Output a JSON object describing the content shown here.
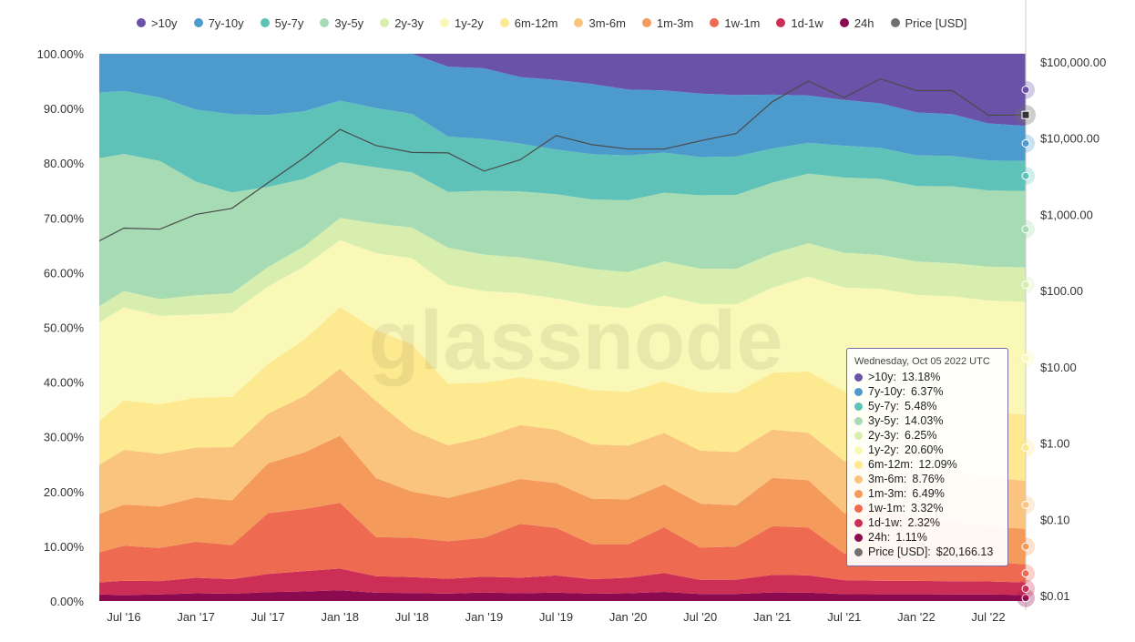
{
  "chart_data": {
    "type": "area",
    "stacked": true,
    "percent_stacked": true,
    "x_ticks": [
      "Jul '16",
      "Jan '17",
      "Jul '17",
      "Jan '18",
      "Jul '18",
      "Jan '19",
      "Jul '19",
      "Jan '20",
      "Jul '20",
      "Jan '21",
      "Jul '21",
      "Jan '22",
      "Jul '22"
    ],
    "y_left_ticks": [
      "0.00%",
      "10.00%",
      "20.00%",
      "30.00%",
      "40.00%",
      "50.00%",
      "60.00%",
      "70.00%",
      "80.00%",
      "90.00%",
      "100.00%"
    ],
    "y_left_range": [
      0,
      100
    ],
    "y_right_scale": "log",
    "y_right_ticks": [
      "$0.01",
      "$0.10",
      "$1.00",
      "$10.00",
      "$100.00",
      "$1,000.00",
      "$10,000.00",
      "$100,000.00"
    ],
    "y_right_range": [
      0.01,
      100000
    ],
    "grid": false,
    "legend_position": "top",
    "watermark": "glassnode",
    "x": [
      "2016-05",
      "2016-07",
      "2016-10",
      "2017-01",
      "2017-04",
      "2017-07",
      "2017-10",
      "2018-01",
      "2018-04",
      "2018-07",
      "2018-10",
      "2019-01",
      "2019-04",
      "2019-07",
      "2019-10",
      "2020-01",
      "2020-04",
      "2020-07",
      "2020-10",
      "2021-01",
      "2021-04",
      "2021-07",
      "2021-10",
      "2022-01",
      "2022-04",
      "2022-07",
      "2022-10"
    ],
    "series": [
      {
        "name": "24h",
        "color": "#8b0a50",
        "values": [
          1.2,
          1.1,
          1.2,
          1.4,
          1.3,
          1.6,
          1.7,
          1.9,
          1.4,
          1.3,
          1.2,
          1.4,
          1.3,
          1.4,
          1.2,
          1.3,
          1.6,
          1.2,
          1.2,
          1.5,
          1.5,
          1.2,
          1.2,
          1.2,
          1.2,
          1.2,
          1.1
        ]
      },
      {
        "name": "1d-1w",
        "color": "#cc2e55",
        "values": [
          2.2,
          2.6,
          2.4,
          2.8,
          2.6,
          3.3,
          3.6,
          3.9,
          2.8,
          2.6,
          2.4,
          2.6,
          2.6,
          2.9,
          2.4,
          2.6,
          3.3,
          2.4,
          2.4,
          3.1,
          3.1,
          2.4,
          2.4,
          2.4,
          2.4,
          2.4,
          2.3
        ]
      },
      {
        "name": "1w-1m",
        "color": "#ee6b52",
        "values": [
          5.5,
          6.4,
          6.0,
          6.5,
          6.1,
          11.0,
          11.0,
          11.8,
          6.6,
          6.4,
          6.1,
          6.4,
          9.0,
          8.0,
          5.8,
          5.6,
          8.0,
          5.5,
          5.6,
          8.6,
          8.6,
          4.6,
          5.3,
          4.2,
          3.8,
          3.6,
          3.3
        ]
      },
      {
        "name": "1m-3m",
        "color": "#f49b5c",
        "values": [
          7.0,
          7.5,
          7.5,
          8.0,
          8.0,
          9.0,
          10.0,
          12.0,
          10.0,
          7.5,
          7.0,
          8.0,
          7.5,
          7.5,
          7.5,
          7.5,
          7.5,
          7.5,
          7.0,
          8.5,
          8.5,
          7.0,
          7.0,
          7.5,
          7.0,
          6.5,
          6.5
        ]
      },
      {
        "name": "3m-6m",
        "color": "#fac47e",
        "values": [
          9.0,
          10.0,
          9.5,
          9.0,
          9.5,
          9.0,
          10.0,
          12.0,
          13.0,
          10.0,
          8.5,
          8.5,
          9.0,
          9.0,
          9.0,
          9.0,
          9.0,
          9.0,
          9.0,
          8.5,
          8.5,
          9.0,
          8.5,
          8.5,
          9.0,
          9.0,
          8.8
        ]
      },
      {
        "name": "6m-12m",
        "color": "#fde990",
        "values": [
          8.0,
          9.0,
          9.0,
          9.0,
          9.0,
          9.0,
          10.0,
          11.0,
          12.0,
          14.0,
          10.0,
          9.0,
          8.0,
          8.0,
          9.0,
          9.0,
          9.0,
          10.0,
          10.0,
          10.0,
          11.0,
          12.0,
          12.0,
          12.0,
          12.0,
          12.0,
          12.1
        ]
      },
      {
        "name": "1y-2y",
        "color": "#f9f8b6",
        "values": [
          18.0,
          17.0,
          16.0,
          15.0,
          15.0,
          14.0,
          13.0,
          12.0,
          13.0,
          14.0,
          16.0,
          15.0,
          14.0,
          14.0,
          14.0,
          14.0,
          15.0,
          15.0,
          15.0,
          15.0,
          17.0,
          18.0,
          19.0,
          19.0,
          20.0,
          20.5,
          20.6
        ]
      },
      {
        "name": "2y-3y",
        "color": "#d8eeaf",
        "values": [
          3.0,
          3.0,
          3.0,
          3.5,
          3.5,
          3.5,
          3.5,
          4.0,
          5.0,
          5.0,
          6.0,
          6.0,
          6.0,
          6.0,
          6.0,
          6.0,
          6.0,
          6.0,
          6.0,
          6.0,
          6.0,
          6.0,
          6.0,
          6.0,
          6.0,
          6.2,
          6.3
        ]
      },
      {
        "name": "3y-5y",
        "color": "#a7dbb3",
        "values": [
          27.0,
          25.0,
          25.0,
          20.5,
          18.0,
          14.5,
          12.0,
          10.0,
          9.5,
          9.0,
          9.0,
          10.5,
          11.0,
          11.5,
          11.5,
          12.0,
          12.0,
          12.5,
          12.5,
          12.5,
          12.5,
          13.0,
          13.5,
          13.5,
          14.0,
          14.0,
          14.0
        ]
      },
      {
        "name": "5y-7y",
        "color": "#5fc2b8",
        "values": [
          12.0,
          11.5,
          11.5,
          13.0,
          14.0,
          13.0,
          12.0,
          11.0,
          10.0,
          9.5,
          9.0,
          8.5,
          8.0,
          7.5,
          7.5,
          7.5,
          7.0,
          6.5,
          6.5,
          6.0,
          5.5,
          5.5,
          5.5,
          5.5,
          5.5,
          5.5,
          5.5
        ]
      },
      {
        "name": "7y-10y",
        "color": "#4d9bcd",
        "values": [
          7.1,
          6.8,
          7.9,
          10.1,
          10.8,
          11.1,
          10.2,
          8.4,
          9.2,
          9.8,
          11.3,
          11.6,
          11.1,
          11.7,
          11.6,
          11.0,
          10.9,
          10.8,
          10.4,
          9.5,
          8.5,
          7.9,
          7.9,
          7.7,
          7.6,
          6.8,
          6.4
        ]
      },
      {
        "name": ">10y",
        "color": "#6a52a8",
        "values": [
          0,
          0,
          0,
          0,
          0,
          0,
          0,
          0,
          0,
          0,
          2.1,
          2.4,
          3.9,
          4.4,
          5.0,
          6.0,
          6.4,
          6.8,
          7.0,
          7.2,
          7.5,
          8.0,
          8.8,
          10.5,
          11.0,
          12.8,
          13.2
        ]
      },
      {
        "name": "Price [USD]",
        "color": "#707070",
        "type": "line",
        "axis": "right",
        "values": [
          450,
          660,
          640,
          1000,
          1200,
          2600,
          5500,
          13000,
          8000,
          6500,
          6400,
          3700,
          5200,
          10800,
          8200,
          7200,
          7200,
          9200,
          11500,
          30000,
          56000,
          34000,
          60000,
          42000,
          42000,
          20000,
          20166.13
        ]
      }
    ],
    "tooltip": {
      "date": "Wednesday, Oct 05 2022 UTC",
      "rows": [
        {
          "label": ">10y:",
          "value": "13.18%",
          "color": "#6a52a8"
        },
        {
          "label": "7y-10y:",
          "value": "6.37%",
          "color": "#4d9bcd"
        },
        {
          "label": "5y-7y:",
          "value": "5.48%",
          "color": "#5fc2b8"
        },
        {
          "label": "3y-5y:",
          "value": "14.03%",
          "color": "#a7dbb3"
        },
        {
          "label": "2y-3y:",
          "value": "6.25%",
          "color": "#d8eeaf"
        },
        {
          "label": "1y-2y:",
          "value": "20.60%",
          "color": "#f9f8b6"
        },
        {
          "label": "6m-12m:",
          "value": "12.09%",
          "color": "#fde990"
        },
        {
          "label": "3m-6m:",
          "value": "8.76%",
          "color": "#fac47e"
        },
        {
          "label": "1m-3m:",
          "value": "6.49%",
          "color": "#f49b5c"
        },
        {
          "label": "1w-1m:",
          "value": "3.32%",
          "color": "#ee6b52"
        },
        {
          "label": "1d-1w:",
          "value": "2.32%",
          "color": "#cc2e55"
        },
        {
          "label": "24h:",
          "value": "1.11%",
          "color": "#8b0a50"
        },
        {
          "label": "Price [USD]:",
          "value": "$20,166.13",
          "color": "#707070"
        }
      ]
    }
  },
  "legend": [
    {
      "name": ">10y",
      "color": "#6a52a8"
    },
    {
      "name": "7y-10y",
      "color": "#4d9bcd"
    },
    {
      "name": "5y-7y",
      "color": "#5fc2b8"
    },
    {
      "name": "3y-5y",
      "color": "#a7dbb3"
    },
    {
      "name": "2y-3y",
      "color": "#d8eeaf"
    },
    {
      "name": "1y-2y",
      "color": "#f9f8b6"
    },
    {
      "name": "6m-12m",
      "color": "#fde990"
    },
    {
      "name": "3m-6m",
      "color": "#fac47e"
    },
    {
      "name": "1m-3m",
      "color": "#f49b5c"
    },
    {
      "name": "1w-1m",
      "color": "#ee6b52"
    },
    {
      "name": "1d-1w",
      "color": "#cc2e55"
    },
    {
      "name": "24h",
      "color": "#8b0a50"
    },
    {
      "name": "Price [USD]",
      "color": "#707070"
    }
  ]
}
